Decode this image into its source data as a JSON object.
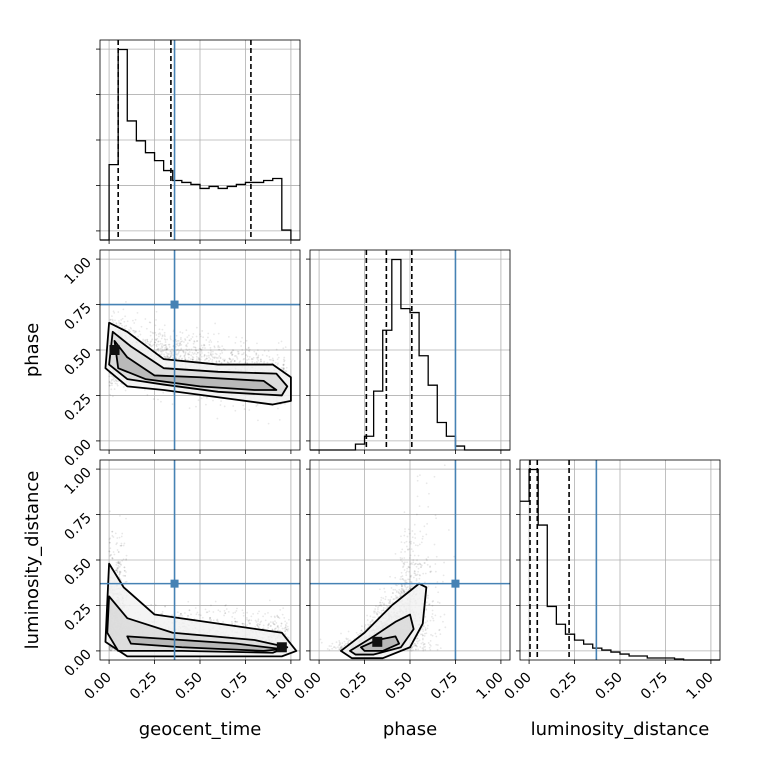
{
  "chart_data": {
    "type": "corner",
    "parameters": [
      "geocent_time",
      "phase",
      "luminosity_distance"
    ],
    "axis_labels": [
      "geocent_time",
      "phase",
      "luminosity_distance"
    ],
    "range": [
      -0.05,
      1.05
    ],
    "tick_values": [
      0.0,
      0.25,
      0.5,
      0.75,
      1.0
    ],
    "tick_labels": [
      "0.00",
      "0.25",
      "0.50",
      "0.75",
      "1.00"
    ],
    "grid": true,
    "injection": {
      "color": "#4682b4",
      "values": {
        "geocent_time": 0.36,
        "phase": 0.75,
        "luminosity_distance": 0.37
      }
    },
    "histograms": {
      "geocent_time": {
        "bin_edges": [
          -0.05,
          0.0,
          0.05,
          0.1,
          0.15,
          0.2,
          0.25,
          0.3,
          0.35,
          0.4,
          0.45,
          0.5,
          0.55,
          0.6,
          0.65,
          0.7,
          0.75,
          0.8,
          0.85,
          0.9,
          0.95,
          1.0,
          1.05
        ],
        "counts": [
          0,
          0.38,
          0.96,
          0.6,
          0.5,
          0.44,
          0.4,
          0.35,
          0.3,
          0.29,
          0.28,
          0.26,
          0.27,
          0.26,
          0.27,
          0.28,
          0.29,
          0.29,
          0.3,
          0.31,
          0.05,
          0
        ],
        "quantiles": [
          0.05,
          0.34,
          0.78
        ]
      },
      "phase": {
        "bin_edges": [
          -0.05,
          0.0,
          0.05,
          0.1,
          0.15,
          0.2,
          0.25,
          0.3,
          0.35,
          0.4,
          0.45,
          0.5,
          0.55,
          0.6,
          0.65,
          0.7,
          0.75,
          0.8,
          0.85,
          0.9,
          0.95,
          1.0,
          1.05
        ],
        "counts": [
          0,
          0,
          0,
          0,
          0,
          0.03,
          0.07,
          0.3,
          0.61,
          0.97,
          0.72,
          0.7,
          0.48,
          0.33,
          0.14,
          0.07,
          0.02,
          0,
          0,
          0,
          0,
          0
        ],
        "quantiles": [
          0.26,
          0.37,
          0.51
        ]
      },
      "luminosity_distance": {
        "bin_edges": [
          -0.05,
          0.0,
          0.05,
          0.1,
          0.15,
          0.2,
          0.25,
          0.3,
          0.35,
          0.4,
          0.45,
          0.5,
          0.55,
          0.6,
          0.65,
          0.7,
          0.75,
          0.8,
          0.85,
          0.9,
          0.95,
          1.0,
          1.05
        ],
        "counts": [
          0.8,
          0.96,
          0.68,
          0.27,
          0.18,
          0.13,
          0.1,
          0.08,
          0.06,
          0.05,
          0.04,
          0.03,
          0.02,
          0.02,
          0.01,
          0.01,
          0.01,
          0.005,
          0,
          0,
          0,
          0
        ],
        "quantiles": [
          0.005,
          0.045,
          0.22
        ]
      }
    },
    "density_peaks": {
      "phase_vs_geocent_time": {
        "x": 0.03,
        "y": 0.5
      },
      "luminosity_distance_vs_geocent_time": {
        "x": 0.95,
        "y": 0.02
      },
      "luminosity_distance_vs_phase": {
        "x": 0.32,
        "y": 0.05
      }
    }
  }
}
